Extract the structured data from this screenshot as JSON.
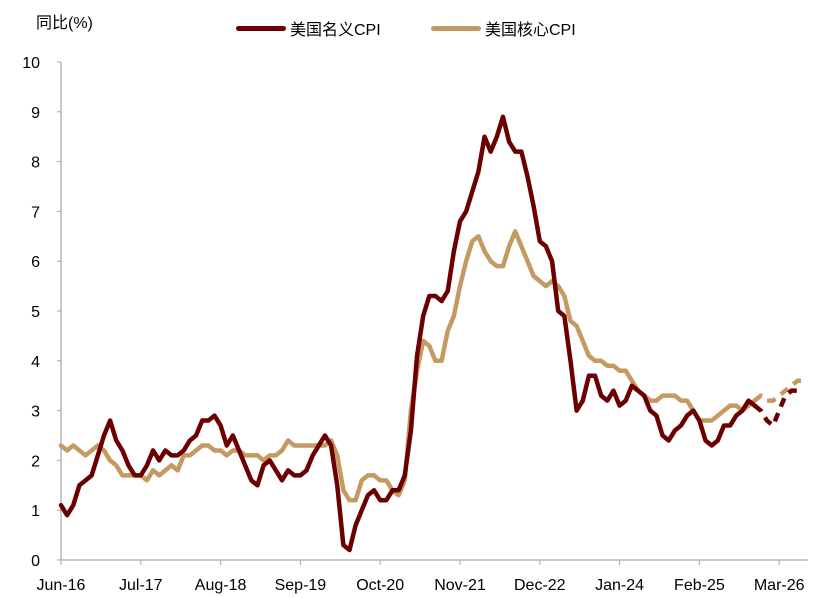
{
  "chart_data": {
    "type": "line",
    "title": "",
    "xlabel": "",
    "ylabel": "同比(%)",
    "ylim": [
      0,
      10
    ],
    "yticks": [
      0,
      1,
      2,
      3,
      4,
      5,
      6,
      7,
      8,
      9,
      10
    ],
    "x_tick_labels": [
      "Jun-16",
      "Jul-17",
      "Aug-18",
      "Sep-19",
      "Oct-20",
      "Nov-21",
      "Dec-22",
      "Jan-24",
      "Feb-25",
      "Mar-26"
    ],
    "x_start": "Jun-16",
    "x_frequency": "monthly",
    "grid": false,
    "legend_position": "top",
    "actual_end_index": 113,
    "series": [
      {
        "name": "美国名义CPI",
        "color": "#6B0000",
        "values": [
          1.1,
          0.9,
          1.1,
          1.5,
          1.6,
          1.7,
          2.1,
          2.5,
          2.8,
          2.4,
          2.2,
          1.9,
          1.7,
          1.7,
          1.9,
          2.2,
          2.0,
          2.2,
          2.1,
          2.1,
          2.2,
          2.4,
          2.5,
          2.8,
          2.8,
          2.9,
          2.7,
          2.3,
          2.5,
          2.2,
          1.9,
          1.6,
          1.5,
          1.9,
          2.0,
          1.8,
          1.6,
          1.8,
          1.7,
          1.7,
          1.8,
          2.1,
          2.3,
          2.5,
          2.3,
          1.5,
          0.3,
          0.2,
          0.7,
          1.0,
          1.3,
          1.4,
          1.2,
          1.2,
          1.4,
          1.4,
          1.7,
          2.6,
          4.1,
          4.9,
          5.3,
          5.3,
          5.2,
          5.4,
          6.2,
          6.8,
          7.0,
          7.4,
          7.8,
          8.5,
          8.2,
          8.5,
          8.9,
          8.4,
          8.2,
          8.2,
          7.7,
          7.1,
          6.4,
          6.3,
          6.0,
          5.0,
          4.9,
          4.0,
          3.0,
          3.2,
          3.7,
          3.7,
          3.3,
          3.2,
          3.4,
          3.1,
          3.2,
          3.5,
          3.4,
          3.3,
          3.0,
          2.9,
          2.5,
          2.4,
          2.6,
          2.7,
          2.9,
          3.0,
          2.8,
          2.4,
          2.3,
          2.4,
          2.7,
          2.7,
          2.9,
          3.0,
          3.2,
          3.1,
          3.0,
          2.8,
          2.7,
          3.0,
          3.3,
          3.4,
          3.4,
          3.4
        ]
      },
      {
        "name": "美国核心CPI",
        "color": "#C49A62",
        "values": [
          2.3,
          2.2,
          2.3,
          2.2,
          2.1,
          2.2,
          2.3,
          2.2,
          2.0,
          1.9,
          1.7,
          1.7,
          1.7,
          1.7,
          1.6,
          1.8,
          1.7,
          1.8,
          1.9,
          1.8,
          2.1,
          2.1,
          2.2,
          2.3,
          2.3,
          2.2,
          2.2,
          2.1,
          2.2,
          2.2,
          2.1,
          2.1,
          2.1,
          2.0,
          2.1,
          2.1,
          2.2,
          2.4,
          2.3,
          2.3,
          2.3,
          2.3,
          2.3,
          2.3,
          2.4,
          2.1,
          1.4,
          1.2,
          1.2,
          1.6,
          1.7,
          1.7,
          1.6,
          1.6,
          1.4,
          1.3,
          1.6,
          3.0,
          3.8,
          4.4,
          4.3,
          4.0,
          4.0,
          4.6,
          4.9,
          5.5,
          6.0,
          6.4,
          6.5,
          6.2,
          6.0,
          5.9,
          5.9,
          6.3,
          6.6,
          6.3,
          6.0,
          5.7,
          5.6,
          5.5,
          5.6,
          5.5,
          5.3,
          4.8,
          4.7,
          4.4,
          4.1,
          4.0,
          4.0,
          3.9,
          3.9,
          3.8,
          3.8,
          3.6,
          3.4,
          3.3,
          3.2,
          3.2,
          3.3,
          3.3,
          3.3,
          3.2,
          3.2,
          3.0,
          2.8,
          2.8,
          2.8,
          2.9,
          3.0,
          3.1,
          3.1,
          3.0,
          3.1,
          3.2,
          3.3,
          3.2,
          3.2,
          3.3,
          3.4,
          3.5,
          3.6,
          3.6
        ]
      }
    ]
  },
  "legend": {
    "items": [
      {
        "label": "美国名义CPI",
        "color": "#6B0000"
      },
      {
        "label": "美国核心CPI",
        "color": "#C49A62"
      }
    ]
  },
  "axis_label": "同比(%)"
}
